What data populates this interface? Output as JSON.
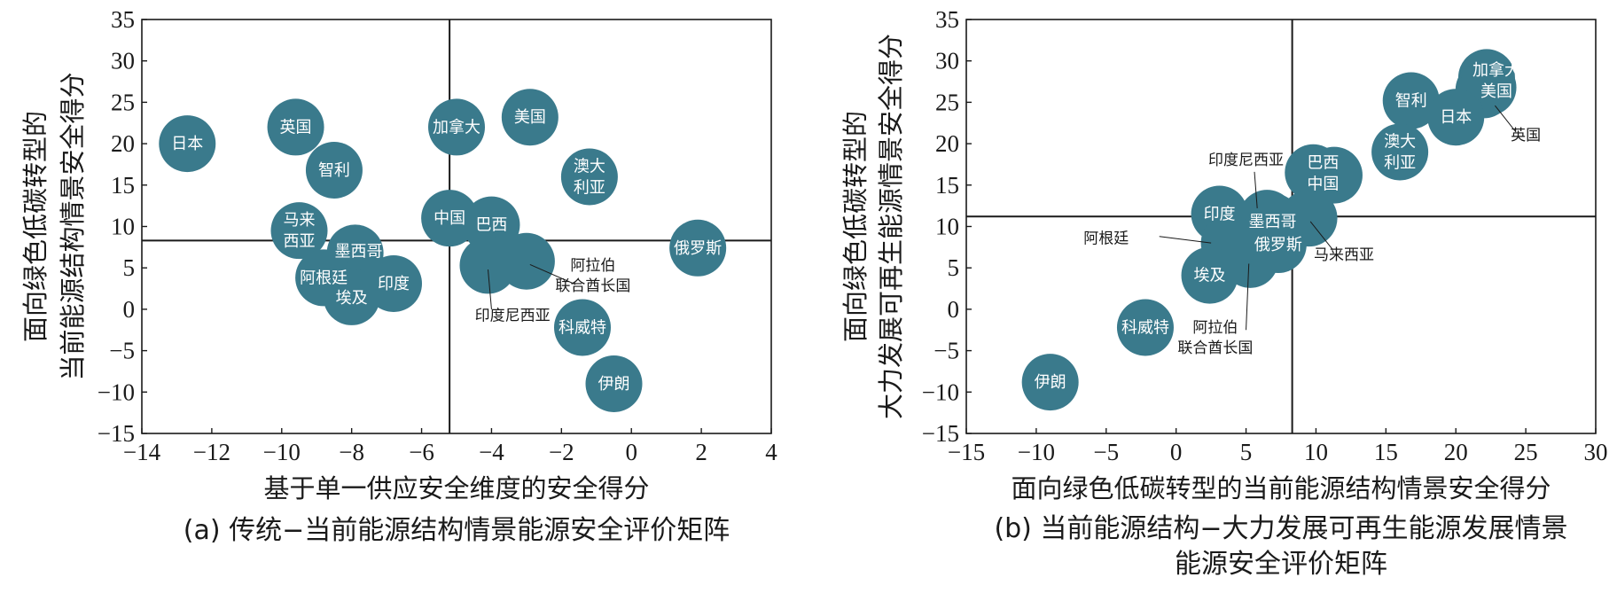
{
  "colors": {
    "bubble": "#3a7a8c",
    "axis": "#1a1a1a",
    "label_inside": "#ffffff",
    "label_outside": "#1a1a1a"
  },
  "chart_data": [
    {
      "type": "scatter",
      "caption": "(a) 传统−当前能源结构情景能源安全评价矩阵",
      "xlabel": "基于单一供应安全维度的安全得分",
      "ylabel": [
        "面向绿色低碳转型的",
        "当前能源结构情景安全得分"
      ],
      "xlim": [
        -14,
        4
      ],
      "ylim": [
        -15,
        35
      ],
      "xticks": [
        -14,
        -12,
        -10,
        -8,
        -6,
        -4,
        -2,
        0,
        2,
        4
      ],
      "yticks": [
        -15,
        -10,
        -5,
        0,
        5,
        10,
        15,
        20,
        25,
        30,
        35
      ],
      "xtick_labels": [
        "−14",
        "−12",
        "−10",
        "−8",
        "−6",
        "−4",
        "−2",
        "0",
        "2",
        "4"
      ],
      "ytick_labels": [
        "−15",
        "−10",
        "−5",
        "0",
        "5",
        "10",
        "15",
        "20",
        "25",
        "30",
        "35"
      ],
      "divider": {
        "x": -5.2,
        "y": 8.3
      },
      "grid": false,
      "points": [
        {
          "name": "日本",
          "x": -12.7,
          "y": 20.0
        },
        {
          "name": "英国",
          "x": -9.6,
          "y": 22.0
        },
        {
          "name": "智利",
          "x": -8.5,
          "y": 16.8
        },
        {
          "name": "马来西亚",
          "x": -9.5,
          "y": 9.5
        },
        {
          "name": "墨西哥",
          "x": -7.9,
          "y": 6.8
        },
        {
          "name": "阿根廷",
          "x": -8.8,
          "y": 3.8
        },
        {
          "name": "埃及",
          "x": -8.0,
          "y": 1.5
        },
        {
          "name": "印度",
          "x": -6.8,
          "y": 3.1
        },
        {
          "name": "加拿大",
          "x": -5.0,
          "y": 22.0
        },
        {
          "name": "美国",
          "x": -2.9,
          "y": 23.2
        },
        {
          "name": "澳大利亚",
          "x": -1.2,
          "y": 16.0
        },
        {
          "name": "中国",
          "x": -5.2,
          "y": 11.0
        },
        {
          "name": "巴西",
          "x": -4.0,
          "y": 10.2
        },
        {
          "name": "阿拉伯联合酋长国",
          "x": -3.0,
          "y": 5.8
        },
        {
          "name": "印度尼西亚",
          "x": -4.1,
          "y": 5.3
        },
        {
          "name": "俄罗斯",
          "x": 1.9,
          "y": 7.4
        },
        {
          "name": "科威特",
          "x": -1.4,
          "y": -2.2
        },
        {
          "name": "伊朗",
          "x": -0.5,
          "y": -9.0
        }
      ],
      "bubble_labels": [
        {
          "lines": [
            "日本"
          ],
          "x": -12.7,
          "y": 20.0
        },
        {
          "lines": [
            "英国"
          ],
          "x": -9.6,
          "y": 22.0
        },
        {
          "lines": [
            "智利"
          ],
          "x": -8.5,
          "y": 16.8
        },
        {
          "lines": [
            "马来",
            "西亚"
          ],
          "x": -9.5,
          "y": 9.5
        },
        {
          "lines": [
            "墨西哥"
          ],
          "x": -7.8,
          "y": 7.0
        },
        {
          "lines": [
            "阿根廷"
          ],
          "x": -8.8,
          "y": 3.8
        },
        {
          "lines": [
            "埃及"
          ],
          "x": -8.0,
          "y": 1.4
        },
        {
          "lines": [
            "印度"
          ],
          "x": -6.8,
          "y": 3.1
        },
        {
          "lines": [
            "加拿大"
          ],
          "x": -5.0,
          "y": 22.0
        },
        {
          "lines": [
            "美国"
          ],
          "x": -2.9,
          "y": 23.2
        },
        {
          "lines": [
            "澳大",
            "利亚"
          ],
          "x": -1.2,
          "y": 16.0
        },
        {
          "lines": [
            "中国"
          ],
          "x": -5.2,
          "y": 11.0
        },
        {
          "lines": [
            "巴西"
          ],
          "x": -4.0,
          "y": 10.2
        },
        {
          "lines": [
            "俄罗斯"
          ],
          "x": 1.9,
          "y": 7.4
        },
        {
          "lines": [
            "科威特"
          ],
          "x": -1.4,
          "y": -2.2
        },
        {
          "lines": [
            "伊朗"
          ],
          "x": -0.5,
          "y": -9.0
        }
      ],
      "callouts": [
        {
          "lines": [
            "阿拉伯",
            "联合酋长国"
          ],
          "tx": -1.1,
          "ty": 4.0,
          "ax": -2.9,
          "ay": 5.4,
          "lx": -1.6,
          "ly": 3.0
        },
        {
          "lines": [
            "印度尼西亚"
          ],
          "tx": -3.4,
          "ty": -0.8,
          "ax": -4.1,
          "ay": 4.8,
          "lx": -4.0,
          "ly": 0.0
        }
      ]
    },
    {
      "type": "scatter",
      "caption": [
        "(b) 当前能源结构−大力发展可再生能源发展情景",
        "能源安全评价矩阵"
      ],
      "xlabel": "面向绿色低碳转型的当前能源结构情景安全得分",
      "ylabel": [
        "面向绿色低碳转型的",
        "大力发展可再生能源情景安全得分"
      ],
      "xlim": [
        -15,
        30
      ],
      "ylim": [
        -15,
        35
      ],
      "xticks": [
        -15,
        -10,
        -5,
        0,
        5,
        10,
        15,
        20,
        25,
        30
      ],
      "yticks": [
        -15,
        -10,
        -5,
        0,
        5,
        10,
        15,
        20,
        25,
        30,
        35
      ],
      "xtick_labels": [
        "−15",
        "−10",
        "−5",
        "0",
        "5",
        "10",
        "15",
        "20",
        "25",
        "30"
      ],
      "ytick_labels": [
        "−15",
        "−10",
        "−5",
        "0",
        "5",
        "10",
        "15",
        "20",
        "25",
        "30",
        "35"
      ],
      "divider": {
        "x": 8.3,
        "y": 11.2
      },
      "grid": false,
      "points": [
        {
          "name": "加拿大",
          "x": 22.2,
          "y": 28.0
        },
        {
          "name": "英国",
          "x": 22.0,
          "y": 26.5
        },
        {
          "name": "美国",
          "x": 22.3,
          "y": 26.8
        },
        {
          "name": "智利",
          "x": 16.8,
          "y": 25.2
        },
        {
          "name": "日本",
          "x": 20.0,
          "y": 23.2
        },
        {
          "name": "澳大利亚",
          "x": 16.0,
          "y": 19.0
        },
        {
          "name": "巴西",
          "x": 9.8,
          "y": 16.5
        },
        {
          "name": "中国",
          "x": 11.3,
          "y": 16.2
        },
        {
          "name": "马来西亚",
          "x": 9.5,
          "y": 11.0
        },
        {
          "name": "印度尼西亚",
          "x": 6.5,
          "y": 11.0
        },
        {
          "name": "墨西哥",
          "x": 6.9,
          "y": 10.6
        },
        {
          "name": "印度",
          "x": 3.1,
          "y": 11.5
        },
        {
          "name": "俄罗斯",
          "x": 7.3,
          "y": 7.8
        },
        {
          "name": "阿拉伯联合酋长国",
          "x": 5.3,
          "y": 6.0
        },
        {
          "name": "阿根廷",
          "x": 3.8,
          "y": 8.0
        },
        {
          "name": "埃及",
          "x": 2.4,
          "y": 4.1
        },
        {
          "name": "科威特",
          "x": -2.2,
          "y": -2.2
        },
        {
          "name": "伊朗",
          "x": -9.0,
          "y": -8.8
        }
      ],
      "bubble_labels": [
        {
          "lines": [
            "加拿大",
            "美国"
          ],
          "x": 22.9,
          "y": 27.6
        },
        {
          "lines": [
            "智利"
          ],
          "x": 16.8,
          "y": 25.2
        },
        {
          "lines": [
            "日本"
          ],
          "x": 20.0,
          "y": 23.2
        },
        {
          "lines": [
            "澳大",
            "利亚"
          ],
          "x": 16.0,
          "y": 19.0
        },
        {
          "lines": [
            "巴西",
            "中国"
          ],
          "x": 10.5,
          "y": 16.4
        },
        {
          "lines": [
            "印度"
          ],
          "x": 3.1,
          "y": 11.5
        },
        {
          "lines": [
            "墨西哥"
          ],
          "x": 6.9,
          "y": 10.6
        },
        {
          "lines": [
            "俄罗斯"
          ],
          "x": 7.3,
          "y": 7.8
        },
        {
          "lines": [
            "埃及"
          ],
          "x": 2.4,
          "y": 4.1
        },
        {
          "lines": [
            "科威特"
          ],
          "x": -2.2,
          "y": -2.2
        },
        {
          "lines": [
            "伊朗"
          ],
          "x": -9.0,
          "y": -8.8
        }
      ],
      "callouts": [
        {
          "lines": [
            "英国"
          ],
          "tx": 25.0,
          "ty": 21.0,
          "ax": 22.8,
          "ay": 24.6,
          "lx": 24.3,
          "ly": 21.4
        },
        {
          "lines": [
            "印度尼西亚"
          ],
          "tx": 5.0,
          "ty": 18.0,
          "ax": 5.8,
          "ay": 12.2,
          "lx": 5.6,
          "ly": 16.6
        },
        {
          "lines": [
            "马来西亚"
          ],
          "tx": 12.0,
          "ty": 6.5,
          "ax": 9.6,
          "ay": 10.6,
          "lx": 11.2,
          "ly": 7.2
        },
        {
          "lines": [
            "阿根廷"
          ],
          "tx": -5.0,
          "ty": 8.5,
          "ax": 2.5,
          "ay": 8.0,
          "lx": -1.2,
          "ly": 8.8
        },
        {
          "lines": [
            "阿拉伯",
            "联合酋长国"
          ],
          "tx": 2.8,
          "ty": -3.5,
          "ax": 5.2,
          "ay": 5.5,
          "lx": 5.0,
          "ly": -2.5
        }
      ]
    }
  ]
}
